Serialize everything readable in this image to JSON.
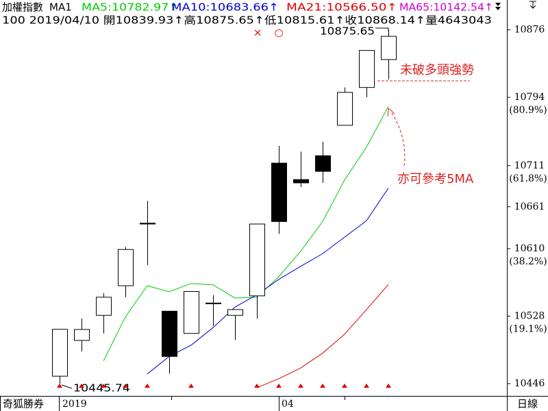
{
  "header": {
    "title": "加權指數",
    "indicator": "MA1",
    "ma_labels": [
      "MA5:10782.97↑",
      "MA10:10683.66↑",
      "MA21:10566.50↑",
      "MA65:10142.54↑"
    ],
    "info": "100 2019/04/10 開10839.93↑高10875.65↑低10815.61↑收10868.14↑量4643043"
  },
  "chart_data": {
    "type": "candlestick",
    "categories": [
      "2019",
      null,
      null,
      null,
      null,
      null,
      null,
      null,
      null,
      null,
      "04",
      null,
      null,
      null,
      null,
      null
    ],
    "open": [
      10455,
      10498.5,
      10529,
      10565,
      10641,
      10534,
      10507,
      10543,
      10529,
      10552.7,
      10714,
      10694,
      10723,
      10760,
      10806,
      10839.93
    ],
    "high": [
      10512,
      10525,
      10556,
      10612,
      10668,
      10534,
      10558,
      10553.5,
      10536,
      10640,
      10735,
      10728,
      10740,
      10806,
      10851,
      10875.65
    ],
    "low": [
      10445.74,
      10485,
      10507,
      10551,
      10590,
      10458,
      10507,
      10516,
      10499,
      10525,
      10628,
      10685,
      10690,
      10760,
      10794,
      10815.61
    ],
    "close": [
      10512,
      10511.8,
      10551,
      10609,
      10640,
      10479,
      10558,
      10544,
      10536,
      10640,
      10643,
      10690,
      10704,
      10800,
      10851,
      10868.14
    ],
    "series": [
      {
        "name": "MA5",
        "color": "#00cc00",
        "values": [
          null,
          null,
          10473.5,
          10527,
          10565,
          10557.7,
          10567.7,
          10566,
          10550,
          10551,
          10576,
          10607,
          10643,
          10693.5,
          10733.5,
          10782.97
        ]
      },
      {
        "name": "MA10",
        "color": "#0000cc",
        "values": [
          null,
          null,
          null,
          null,
          10457.7,
          10479,
          10492.7,
          10514,
          10539,
          10554,
          10572.7,
          10588.5,
          10604,
          10624,
          10644,
          10683.66
        ]
      },
      {
        "name": "MA21",
        "color": "#dd0000",
        "values": [
          null,
          null,
          null,
          null,
          null,
          null,
          null,
          null,
          null,
          10441,
          10452,
          10465,
          10483,
          10506,
          10536,
          10566.5
        ]
      }
    ],
    "ylim": [
      10431,
      10879
    ],
    "yticks": [
      10876,
      10794,
      10711,
      10661,
      10610,
      10528,
      10446
    ],
    "fib_labels": [
      {
        "value": 10794,
        "label": "(80.9%)"
      },
      {
        "value": 10711,
        "label": "(61.8%)"
      },
      {
        "value": 10610,
        "label": "(38.2%)"
      },
      {
        "value": 10528,
        "label": "(19.1%)"
      }
    ],
    "annotations": [
      "10875.65",
      "10445.74",
      "未破多頭強勢",
      "亦可參考5MA"
    ],
    "signal_marks": [
      "×",
      "○"
    ],
    "footer_left": "奇狐勝券",
    "footer_right": "日線"
  }
}
